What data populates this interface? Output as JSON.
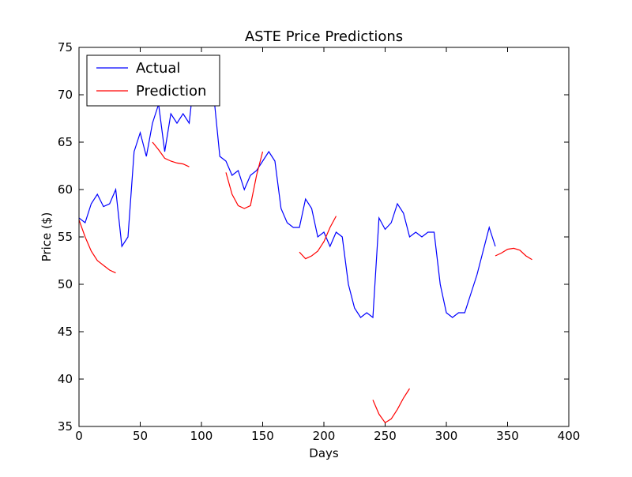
{
  "chart_data": {
    "type": "line",
    "title": "ASTE Price Predictions",
    "x_label": "Days",
    "y_label": "Price ($)",
    "x": [
      0,
      5,
      10,
      15,
      20,
      25,
      30,
      35,
      40,
      45,
      50,
      55,
      60,
      65,
      70,
      75,
      80,
      85,
      90,
      95,
      100,
      105,
      110,
      115,
      120,
      125,
      130,
      135,
      140,
      145,
      150,
      155,
      160,
      165,
      170,
      175,
      180,
      185,
      190,
      195,
      200,
      205,
      210,
      215,
      220,
      225,
      230,
      235,
      240,
      245,
      250,
      255,
      260,
      265,
      270,
      275,
      280,
      285,
      290,
      295,
      300,
      305,
      310,
      315,
      320,
      325,
      330,
      335,
      340,
      345,
      350,
      355,
      360,
      365,
      370
    ],
    "series": [
      {
        "name": "Actual",
        "color": "#0000ff",
        "values": [
          57,
          56.5,
          58.5,
          59.5,
          58.2,
          58.5,
          60,
          54,
          55,
          64,
          66,
          63.5,
          67,
          69,
          64,
          68,
          67,
          68,
          67,
          73,
          74,
          72,
          70,
          63.5,
          63,
          61.5,
          62,
          60,
          61.5,
          62,
          63,
          64,
          63,
          58,
          56.5,
          56,
          56,
          59,
          58,
          55,
          55.5,
          54,
          55.5,
          55,
          50,
          47.5,
          46.5,
          47,
          46.5,
          57,
          55.8,
          56.5,
          58.5,
          57.5,
          55,
          55.5,
          55,
          55.5,
          55.5,
          50,
          47,
          46.5,
          47,
          47,
          49,
          51,
          53.5,
          56,
          54,
          null,
          null,
          null,
          null,
          null,
          null
        ]
      },
      {
        "name": "Prediction",
        "color": "#ff0000",
        "values": [
          56.8,
          55,
          53.5,
          52.5,
          52,
          51.5,
          51.2,
          null,
          null,
          null,
          null,
          null,
          65,
          64.2,
          63.3,
          63,
          62.8,
          62.7,
          62.4,
          null,
          null,
          null,
          null,
          null,
          61.8,
          59.5,
          58.3,
          58,
          58.3,
          61.5,
          64,
          null,
          null,
          null,
          null,
          null,
          53.4,
          52.7,
          53,
          53.5,
          54.5,
          56,
          57.2,
          null,
          null,
          null,
          null,
          null,
          37.8,
          36.3,
          35.4,
          35.8,
          36.8,
          38,
          39,
          null,
          null,
          null,
          null,
          null,
          null,
          null,
          null,
          null,
          null,
          null,
          null,
          null,
          53,
          53.3,
          53.7,
          53.8,
          53.6,
          53,
          52.6
        ]
      }
    ],
    "xlim": [
      0,
      400
    ],
    "xticks": [
      0,
      50,
      100,
      150,
      200,
      250,
      300,
      350,
      400
    ],
    "ylim": [
      35,
      75
    ],
    "yticks": [
      35,
      40,
      45,
      50,
      55,
      60,
      65,
      70,
      75
    ],
    "legend": "upper left"
  }
}
